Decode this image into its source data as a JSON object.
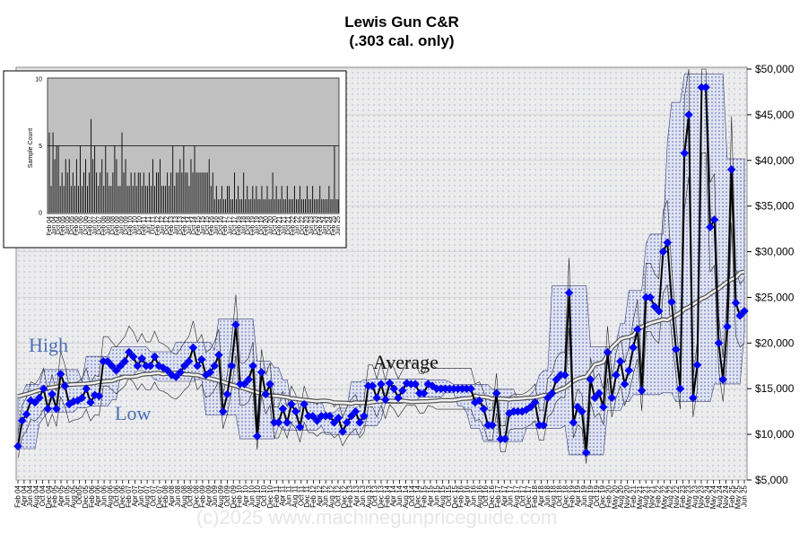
{
  "chart_data": [
    {
      "type": "line",
      "title": "Lewis Gun C&R",
      "subtitle": "(.303 cal. only)",
      "xlabel": "",
      "ylabel": "",
      "ylim": [
        5000,
        50000
      ],
      "y_ticks": [
        "$5,000",
        "$10,000",
        "$15,000",
        "$20,000",
        "$25,000",
        "$30,000",
        "$35,000",
        "$40,000",
        "$45,000",
        "$50,000"
      ],
      "x_ticks": [
        "Feb 04",
        "Apr 04",
        "Jun 04",
        "Aug 04",
        "Oct 04",
        "Dec 04",
        "Feb 05",
        "Apr 05",
        "Jun 05",
        "Aug 05",
        "Oct05",
        "Dec 05",
        "Feb 06",
        "Apr 06",
        "Jun 06",
        "Aug 06",
        "Oct 06",
        "Dec 06",
        "Feb 07",
        "Apr 07",
        "Jun 07",
        "Aug 07",
        "Oct 07",
        "Dec 07",
        "Feb 08",
        "Apr 08",
        "Jun 08",
        "Aug 08",
        "Oct 08",
        "Dec 08",
        "Feb 09",
        "Apr 09",
        "Jun 09",
        "Aug 09",
        "Oct 09",
        "Dec 09",
        "Feb 10",
        "Apr 10",
        "Jun 10",
        "Aug 10",
        "Oct 10",
        "Dec 10",
        "Feb 11",
        "Apr 11",
        "Jun 11",
        "Aug 11",
        "Oct 11",
        "Dec 11",
        "Feb 12",
        "Apr 12",
        "Jun 12",
        "Aug 12",
        "Oct 12",
        "Dec 12",
        "Feb 13",
        "Apr 13",
        "Jun 13",
        "Aug 13",
        "Oct 13",
        "Dec 13",
        "Feb 14",
        "Apr 14",
        "Jun 14",
        "Aug 14",
        "Oct 14",
        "Dec 14",
        "Feb 15",
        "Apr 15",
        "Jun 15",
        "Aug 15",
        "Oct 15",
        "Dec 15",
        "Feb 16",
        "Apr 16",
        "Jun 16",
        "Aug 16",
        "Oct 16",
        "Dec 16",
        "Feb 17",
        "Apr 17",
        "Jun 17",
        "Aug 17",
        "Oct 17",
        "Dec 17",
        "Feb 18",
        "Apr 18",
        "Jun 18",
        "Aug 18",
        "Oct 18",
        "Dec 18",
        "Feb 19",
        "Apr 19",
        "Jun 19",
        "Aug 19",
        "Oct 19",
        "Dec 19",
        "Feb 20",
        "May 20",
        "Aug 20",
        "Nov 20",
        "Feb 21",
        "May 21",
        "Aug 21",
        "Nov 21",
        "Feb 22",
        "May 22",
        "Aug 22",
        "Nov 22",
        "Feb 23",
        "May 23",
        "Aug 23",
        "Nov 23",
        "Feb 24",
        "May 24",
        "Aug 24",
        "Nov 24",
        "Feb 25",
        "May 25",
        "Jun 25"
      ],
      "annotations": [
        "High",
        "Low",
        "Average"
      ],
      "grid": true,
      "series": [
        {
          "values": [
            8700,
            11500,
            12200,
            13700,
            13500,
            14000,
            15000,
            12800,
            14400,
            12800,
            16600,
            15300,
            13300,
            13600,
            13700,
            14000,
            15000,
            13500,
            14300,
            14200,
            18000,
            18000,
            17500,
            17000,
            17500,
            18000,
            19000,
            18500,
            17500,
            18300,
            17500,
            17500,
            18500,
            17500,
            17300,
            17000,
            16500,
            16300,
            16800,
            17500,
            18000,
            19500,
            17500,
            18200,
            16500,
            16800,
            17500,
            18700,
            12500,
            14400,
            17500,
            22000,
            15500,
            15500,
            16000,
            17500,
            9800,
            16800,
            14400,
            15500,
            11300,
            11300,
            12800,
            11300,
            13300,
            12500,
            10800,
            13300,
            12000,
            12000,
            11500,
            12000,
            12000,
            12000,
            11300,
            11800,
            10300,
            11300,
            12000,
            12500,
            11300,
            12000,
            15300,
            15300,
            14000,
            15500,
            13800,
            15600,
            15000,
            14000,
            14800,
            15600,
            15500,
            15500,
            14500,
            14500,
            15500,
            15300,
            15000,
            15000,
            15000,
            15000,
            15000,
            15000,
            15000,
            15000,
            15000,
            13500,
            13700,
            12800,
            11000,
            11000,
            14500,
            9500,
            9500,
            12300,
            12500,
            12500,
            12500,
            12700,
            13000,
            13500,
            11000,
            11000,
            14000,
            14500,
            16000,
            16500,
            16500,
            25500,
            11300,
            13000,
            12500,
            8000,
            16000,
            14000,
            14500,
            13000,
            19000,
            14000,
            16500,
            18000,
            15500,
            17000,
            19500,
            21500,
            14800,
            25000,
            25000,
            24000,
            23500,
            30000,
            31000,
            24500,
            19300,
            15000,
            40800,
            45000,
            14000,
            17600,
            48000,
            48000,
            32700,
            33500,
            20000,
            16000,
            21800,
            39000,
            24400,
            23000,
            23500
          ]
        }
      ]
    },
    {
      "type": "bar",
      "ylabel": "Sample Count",
      "ylim": [
        0,
        10
      ],
      "y_ticks": [
        "0",
        "5",
        "10"
      ],
      "x_ticks": [
        "Feb 04",
        "Jun 04",
        "Oct 04",
        "Feb 05",
        "Jun 05",
        "Oct 05",
        "Feb 06",
        "Jun 06",
        "Oct 06",
        "Feb 07",
        "Jun 07",
        "Oct 07",
        "Feb 08",
        "Jun 08",
        "Oct 08",
        "Feb 09",
        "Jun 09",
        "Oct 09",
        "Feb 10",
        "Jun 10",
        "Oct 10",
        "Feb 11",
        "Jun 11",
        "Oct 11",
        "Feb 12",
        "Jun 12",
        "Oct 12",
        "Feb 13",
        "Jun 13",
        "Oct 13",
        "Feb 14",
        "Jun 14",
        "Oct 14",
        "Feb 15",
        "Jun 15",
        "Oct 15",
        "Feb 16",
        "Jun 16",
        "Oct 16",
        "Feb 17",
        "Jun 17",
        "Oct 17",
        "Feb 18",
        "Jun 18",
        "Oct 18",
        "Feb 19",
        "Jun 19",
        "Oct 19",
        "Feb 20",
        "Jun 20",
        "Oct 20",
        "Feb 21",
        "Jun 21",
        "Oct 21",
        "Feb 22",
        "Jun 22",
        "Oct 22",
        "Feb 23",
        "Jun 23",
        "Oct 23",
        "Feb 24",
        "Jun 24",
        "Oct 24",
        "Feb 25",
        "Jun 25"
      ],
      "values": [
        6,
        2,
        6,
        4,
        5,
        5,
        2,
        3,
        2,
        4,
        3,
        4,
        2,
        3,
        2,
        4,
        2,
        5,
        2,
        3,
        4,
        2,
        3,
        7,
        4,
        5,
        3,
        2,
        3,
        4,
        2,
        5,
        3,
        2,
        2,
        3,
        5,
        4,
        2,
        2,
        6,
        3,
        4,
        2,
        2,
        3,
        2,
        3,
        2,
        3,
        3,
        2,
        3,
        2,
        2,
        3,
        2,
        4,
        2,
        3,
        3,
        4,
        2,
        2,
        2,
        3,
        2,
        3,
        5,
        2,
        3,
        3,
        4,
        3,
        5,
        3,
        3,
        2,
        4,
        3,
        5,
        3,
        3,
        3,
        3,
        3,
        3,
        3,
        4,
        2,
        3,
        1,
        2,
        1,
        1,
        2,
        1,
        1,
        2,
        2,
        1,
        1,
        3,
        1,
        2,
        1,
        1,
        3,
        1,
        2,
        1,
        1,
        2,
        1,
        2,
        1,
        1,
        2,
        1,
        1,
        2,
        1,
        1,
        3,
        1,
        2,
        1,
        1,
        2,
        1,
        1,
        2,
        1,
        1,
        1,
        2,
        1,
        1,
        2,
        1,
        1,
        1,
        2,
        1,
        1,
        2,
        1,
        1,
        1,
        2,
        1,
        1,
        1,
        1,
        2,
        1,
        1,
        5,
        1,
        1
      ],
      "max_line": 5
    }
  ],
  "watermark": "(c)2025 www.machinegunpriceguide.com",
  "colors": {
    "marker": "#0000ff",
    "band": "#0000aa",
    "line": "#000000",
    "panel_bg": "#dcdcdc",
    "inset_bg": "#c0c0c0",
    "annotation_blue": "#4a6fb5"
  }
}
